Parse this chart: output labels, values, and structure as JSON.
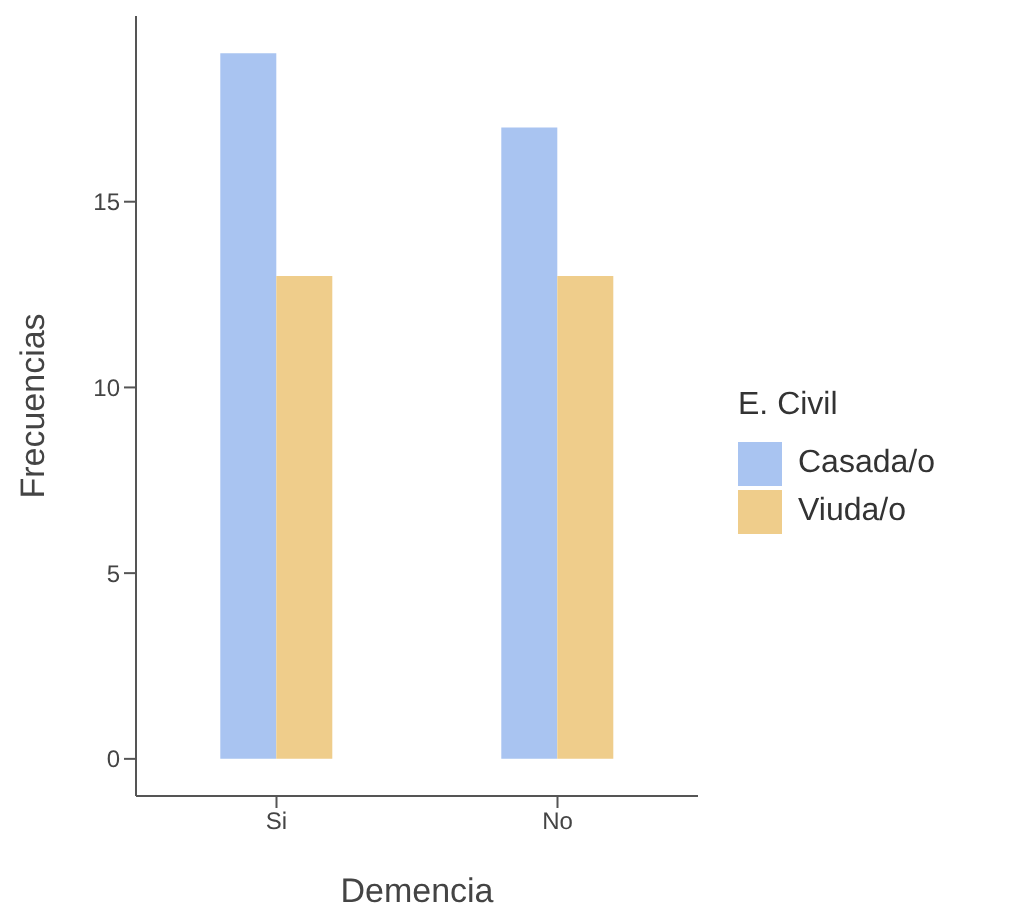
{
  "chart_data": {
    "type": "bar",
    "xlabel": "Demencia",
    "ylabel": "Frecuencias",
    "legend_title": "E. Civil",
    "categories": [
      "Si",
      "No"
    ],
    "series": [
      {
        "name": "Casada/o",
        "color": "#a9c4f1",
        "values": [
          19,
          17
        ]
      },
      {
        "name": "Viuda/o",
        "color": "#efcd8b",
        "values": [
          13,
          13
        ]
      }
    ],
    "ylim": [
      -1,
      20
    ],
    "yticks": [
      0,
      5,
      10,
      15
    ],
    "grid": false,
    "legend": "right"
  }
}
